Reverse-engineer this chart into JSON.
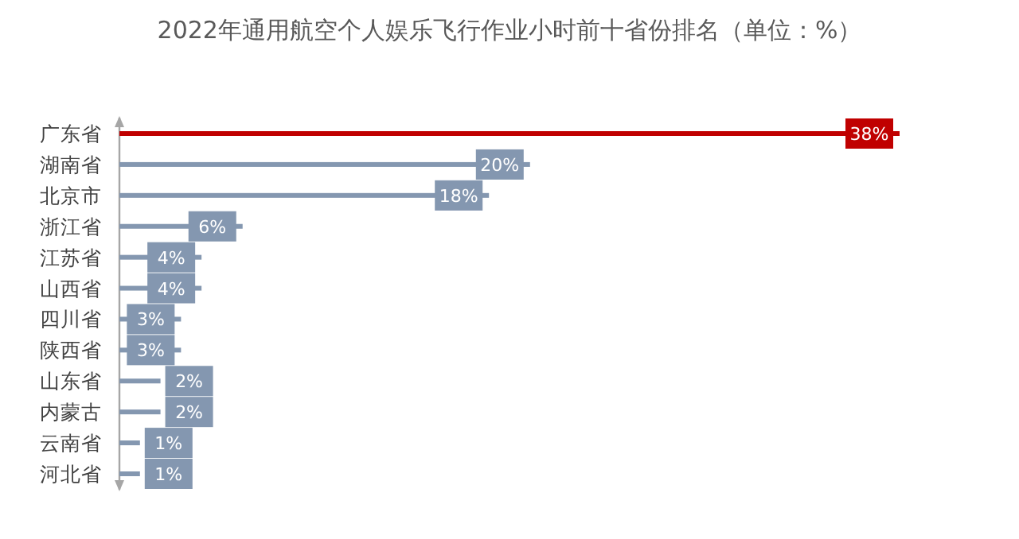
{
  "chart_data": {
    "type": "bar",
    "orientation": "horizontal",
    "title": "2022年通用航空个人娱乐飞行作业小时前十省份排名（单位：%）",
    "categories": [
      "广东省",
      "湖南省",
      "北京市",
      "浙江省",
      "江苏省",
      "山西省",
      "四川省",
      "陕西省",
      "山东省",
      "内蒙古",
      "云南省",
      "河北省"
    ],
    "values": [
      38,
      20,
      18,
      6,
      4,
      4,
      3,
      3,
      2,
      2,
      1,
      1
    ],
    "value_labels": [
      "38%",
      "20%",
      "18%",
      "6%",
      "4%",
      "4%",
      "3%",
      "3%",
      "2%",
      "2%",
      "1%",
      "1%"
    ],
    "colors": [
      "#c00000",
      "#8497b0",
      "#8497b0",
      "#8497b0",
      "#8497b0",
      "#8497b0",
      "#8497b0",
      "#8497b0",
      "#8497b0",
      "#8497b0",
      "#8497b0",
      "#8497b0"
    ]
  }
}
